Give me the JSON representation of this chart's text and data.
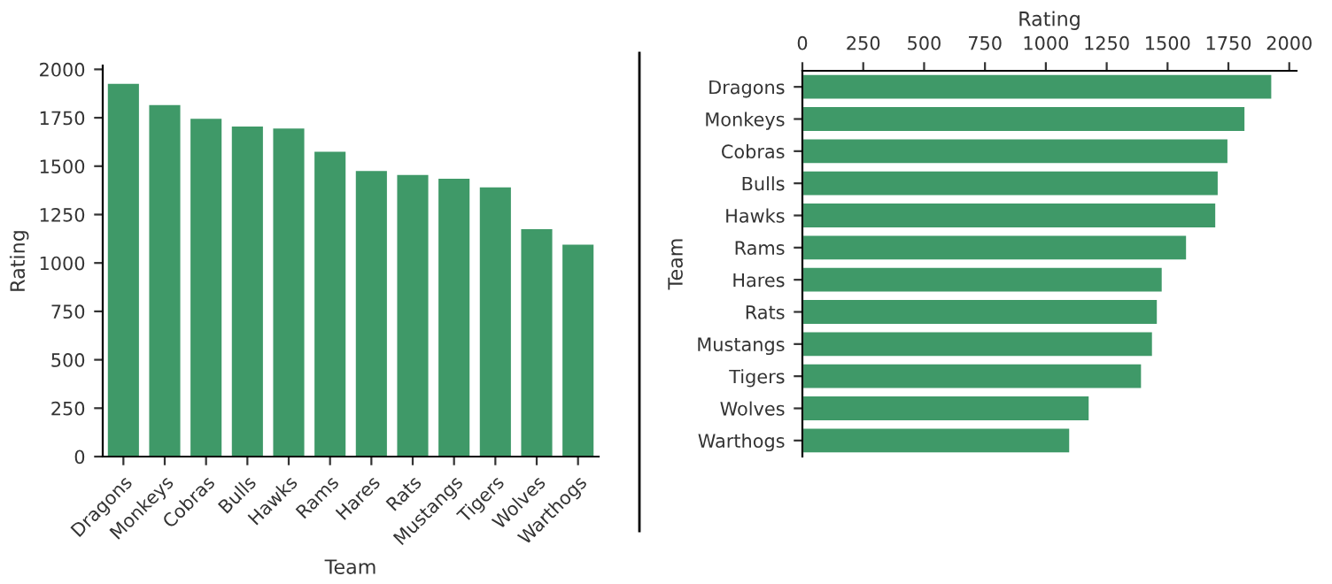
{
  "chart_data": [
    {
      "type": "bar",
      "xlabel": "Team",
      "ylabel": "Rating",
      "categories": [
        "Dragons",
        "Monkeys",
        "Cobras",
        "Bulls",
        "Hawks",
        "Rams",
        "Hares",
        "Rats",
        "Mustangs",
        "Tigers",
        "Wolves",
        "Warthogs"
      ],
      "values": [
        1930,
        1820,
        1750,
        1710,
        1700,
        1580,
        1480,
        1460,
        1440,
        1395,
        1180,
        1100
      ],
      "color": "#3f9968",
      "ylim": [
        0,
        2020
      ],
      "yticks": [
        0,
        250,
        500,
        750,
        1000,
        1250,
        1500,
        1750,
        2000
      ],
      "grid": false
    },
    {
      "type": "bar",
      "orientation": "horizontal",
      "xlabel": "Rating",
      "ylabel": "Team",
      "categories": [
        "Dragons",
        "Monkeys",
        "Cobras",
        "Bulls",
        "Hawks",
        "Rams",
        "Hares",
        "Rats",
        "Mustangs",
        "Tigers",
        "Wolves",
        "Warthogs"
      ],
      "values": [
        1930,
        1820,
        1750,
        1710,
        1700,
        1580,
        1480,
        1460,
        1440,
        1395,
        1180,
        1100
      ],
      "color": "#3f9968",
      "xlim": [
        0,
        2030
      ],
      "xticks": [
        0,
        250,
        500,
        750,
        1000,
        1250,
        1500,
        1750,
        2000
      ],
      "grid": false
    }
  ]
}
